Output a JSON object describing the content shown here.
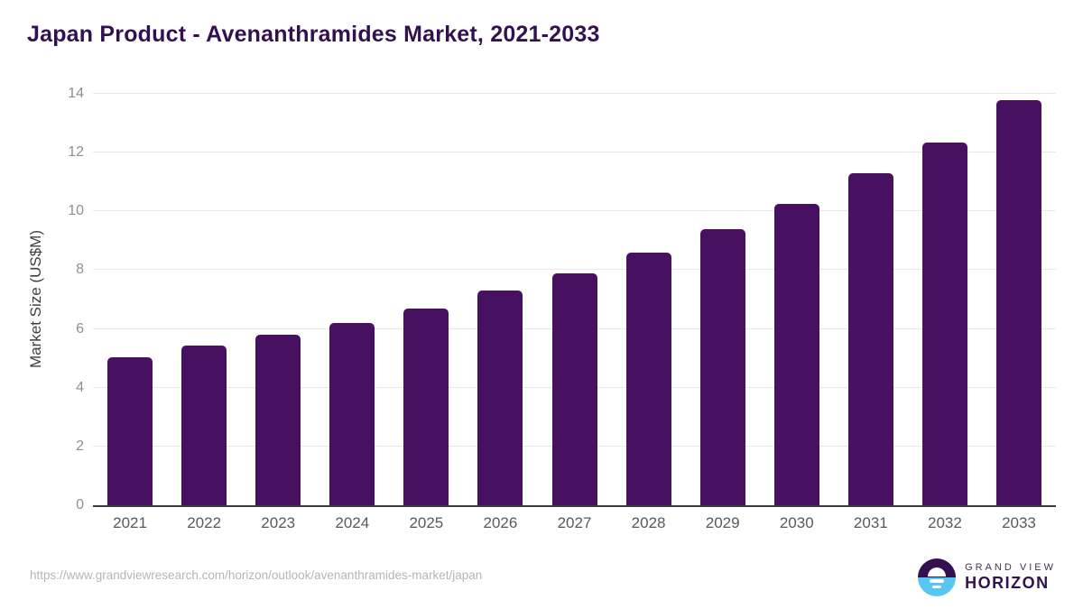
{
  "title": "Japan Product - Avenanthramides Market, 2021-2033",
  "colors": {
    "bar": "#471061",
    "title": "#331150",
    "gridline": "#e8e8e8",
    "axis_line": "#3b3b3b",
    "tick_label": "#8f8f8f",
    "x_label": "#595959",
    "url_text": "#b5b5b5",
    "logo_purple": "#331150",
    "logo_blue": "#58c6f2"
  },
  "chart_data": {
    "type": "bar",
    "title": "Japan Product - Avenanthramides Market, 2021-2033",
    "categories": [
      "2021",
      "2022",
      "2023",
      "2024",
      "2025",
      "2026",
      "2027",
      "2028",
      "2029",
      "2030",
      "2031",
      "2032",
      "2033"
    ],
    "values": [
      5.05,
      5.45,
      5.8,
      6.2,
      6.7,
      7.3,
      7.9,
      8.6,
      9.4,
      10.25,
      11.3,
      12.35,
      13.8
    ],
    "xlabel": "",
    "ylabel": "Market Size (US$M)",
    "ylim": [
      0,
      14
    ],
    "yticks": [
      0,
      2,
      4,
      6,
      8,
      10,
      12,
      14
    ],
    "grid": true,
    "legend": "none",
    "bar_color": "#471061"
  },
  "footer": {
    "source_url": "https://www.grandviewresearch.com/horizon/outlook/avenanthramides-market/japan",
    "logo": {
      "icon": "horizon-sun-icon",
      "line1": "GRAND VIEW",
      "line2": "HORIZON"
    }
  }
}
